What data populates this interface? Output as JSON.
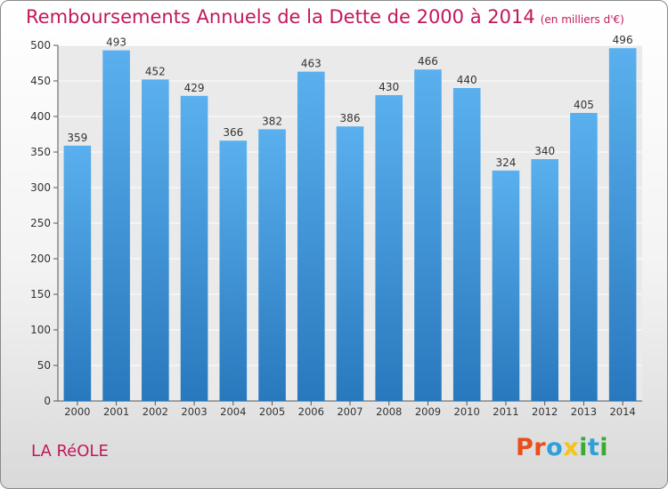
{
  "title": "Remboursements Annuels de la Dette de 2000 à 2014",
  "unit_note": "(en milliers d'€)",
  "place": "LA RéOLE",
  "logo": {
    "letters": [
      "P",
      "r",
      "o",
      "x",
      "i",
      "t",
      "i"
    ],
    "colors": [
      "#e94e1b",
      "#e94e1b",
      "#2e9fd8",
      "#f6c316",
      "#3aaa35",
      "#2e9fd8",
      "#3aaa35"
    ]
  },
  "chart_data": {
    "type": "bar",
    "categories": [
      "2000",
      "2001",
      "2002",
      "2003",
      "2004",
      "2005",
      "2006",
      "2007",
      "2008",
      "2009",
      "2010",
      "2011",
      "2012",
      "2013",
      "2014"
    ],
    "values": [
      359,
      493,
      452,
      429,
      366,
      382,
      463,
      386,
      430,
      466,
      440,
      324,
      340,
      405,
      496
    ],
    "y_ticks": [
      0,
      50,
      100,
      150,
      200,
      250,
      300,
      350,
      400,
      450,
      500
    ],
    "ylim": [
      0,
      500
    ],
    "grid": true,
    "bar_color": "#3a8fd8"
  }
}
